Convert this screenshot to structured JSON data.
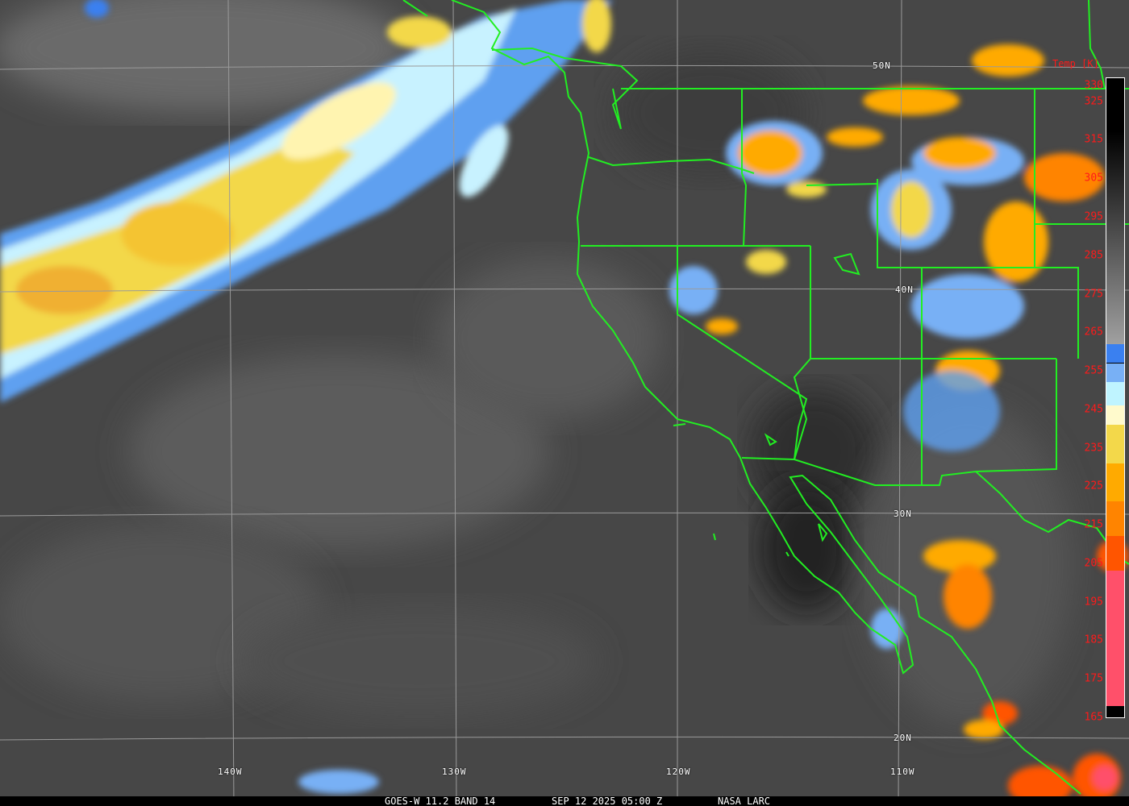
{
  "caption": {
    "product": "GOES-W 11.2 BAND 14",
    "datetime": "SEP 12 2025 05:00 Z",
    "credit": "NASA LARC"
  },
  "latitude_labels": [
    "50N",
    "40N",
    "30N",
    "20N"
  ],
  "longitude_labels": [
    "140W",
    "130W",
    "120W",
    "110W"
  ],
  "colorbar": {
    "title": "Temp [K]",
    "ticks": [
      "330",
      "325",
      "315",
      "305",
      "295",
      "285",
      "275",
      "265",
      "255",
      "245",
      "235",
      "225",
      "215",
      "205",
      "195",
      "185",
      "175",
      "165"
    ],
    "range_K": [
      165,
      331
    ],
    "segments": [
      {
        "from": 331,
        "to": 262,
        "color": "gradient #000000 to #a0a0a0"
      },
      {
        "from": 262,
        "to": 257,
        "color": "#3a80f0"
      },
      {
        "from": 257,
        "to": 252,
        "color": "#78b0f5"
      },
      {
        "from": 252,
        "to": 246,
        "color": "#bff4ff"
      },
      {
        "from": 246,
        "to": 241,
        "color": "#fffacc"
      },
      {
        "from": 241,
        "to": 231,
        "color": "#f3d84a"
      },
      {
        "from": 231,
        "to": 221,
        "color": "#ffaa00"
      },
      {
        "from": 221,
        "to": 212,
        "color": "#ff8400"
      },
      {
        "from": 212,
        "to": 203,
        "color": "#ff5500"
      },
      {
        "from": 203,
        "to": 168,
        "color": "#ff506a"
      },
      {
        "from": 168,
        "to": 165,
        "color": "#000000"
      }
    ]
  },
  "colors": {
    "boundaries": "#22ee22",
    "grid": "#9a9a9a",
    "labels": "#ffffff",
    "colorbar_text": "#ff1a1a"
  }
}
